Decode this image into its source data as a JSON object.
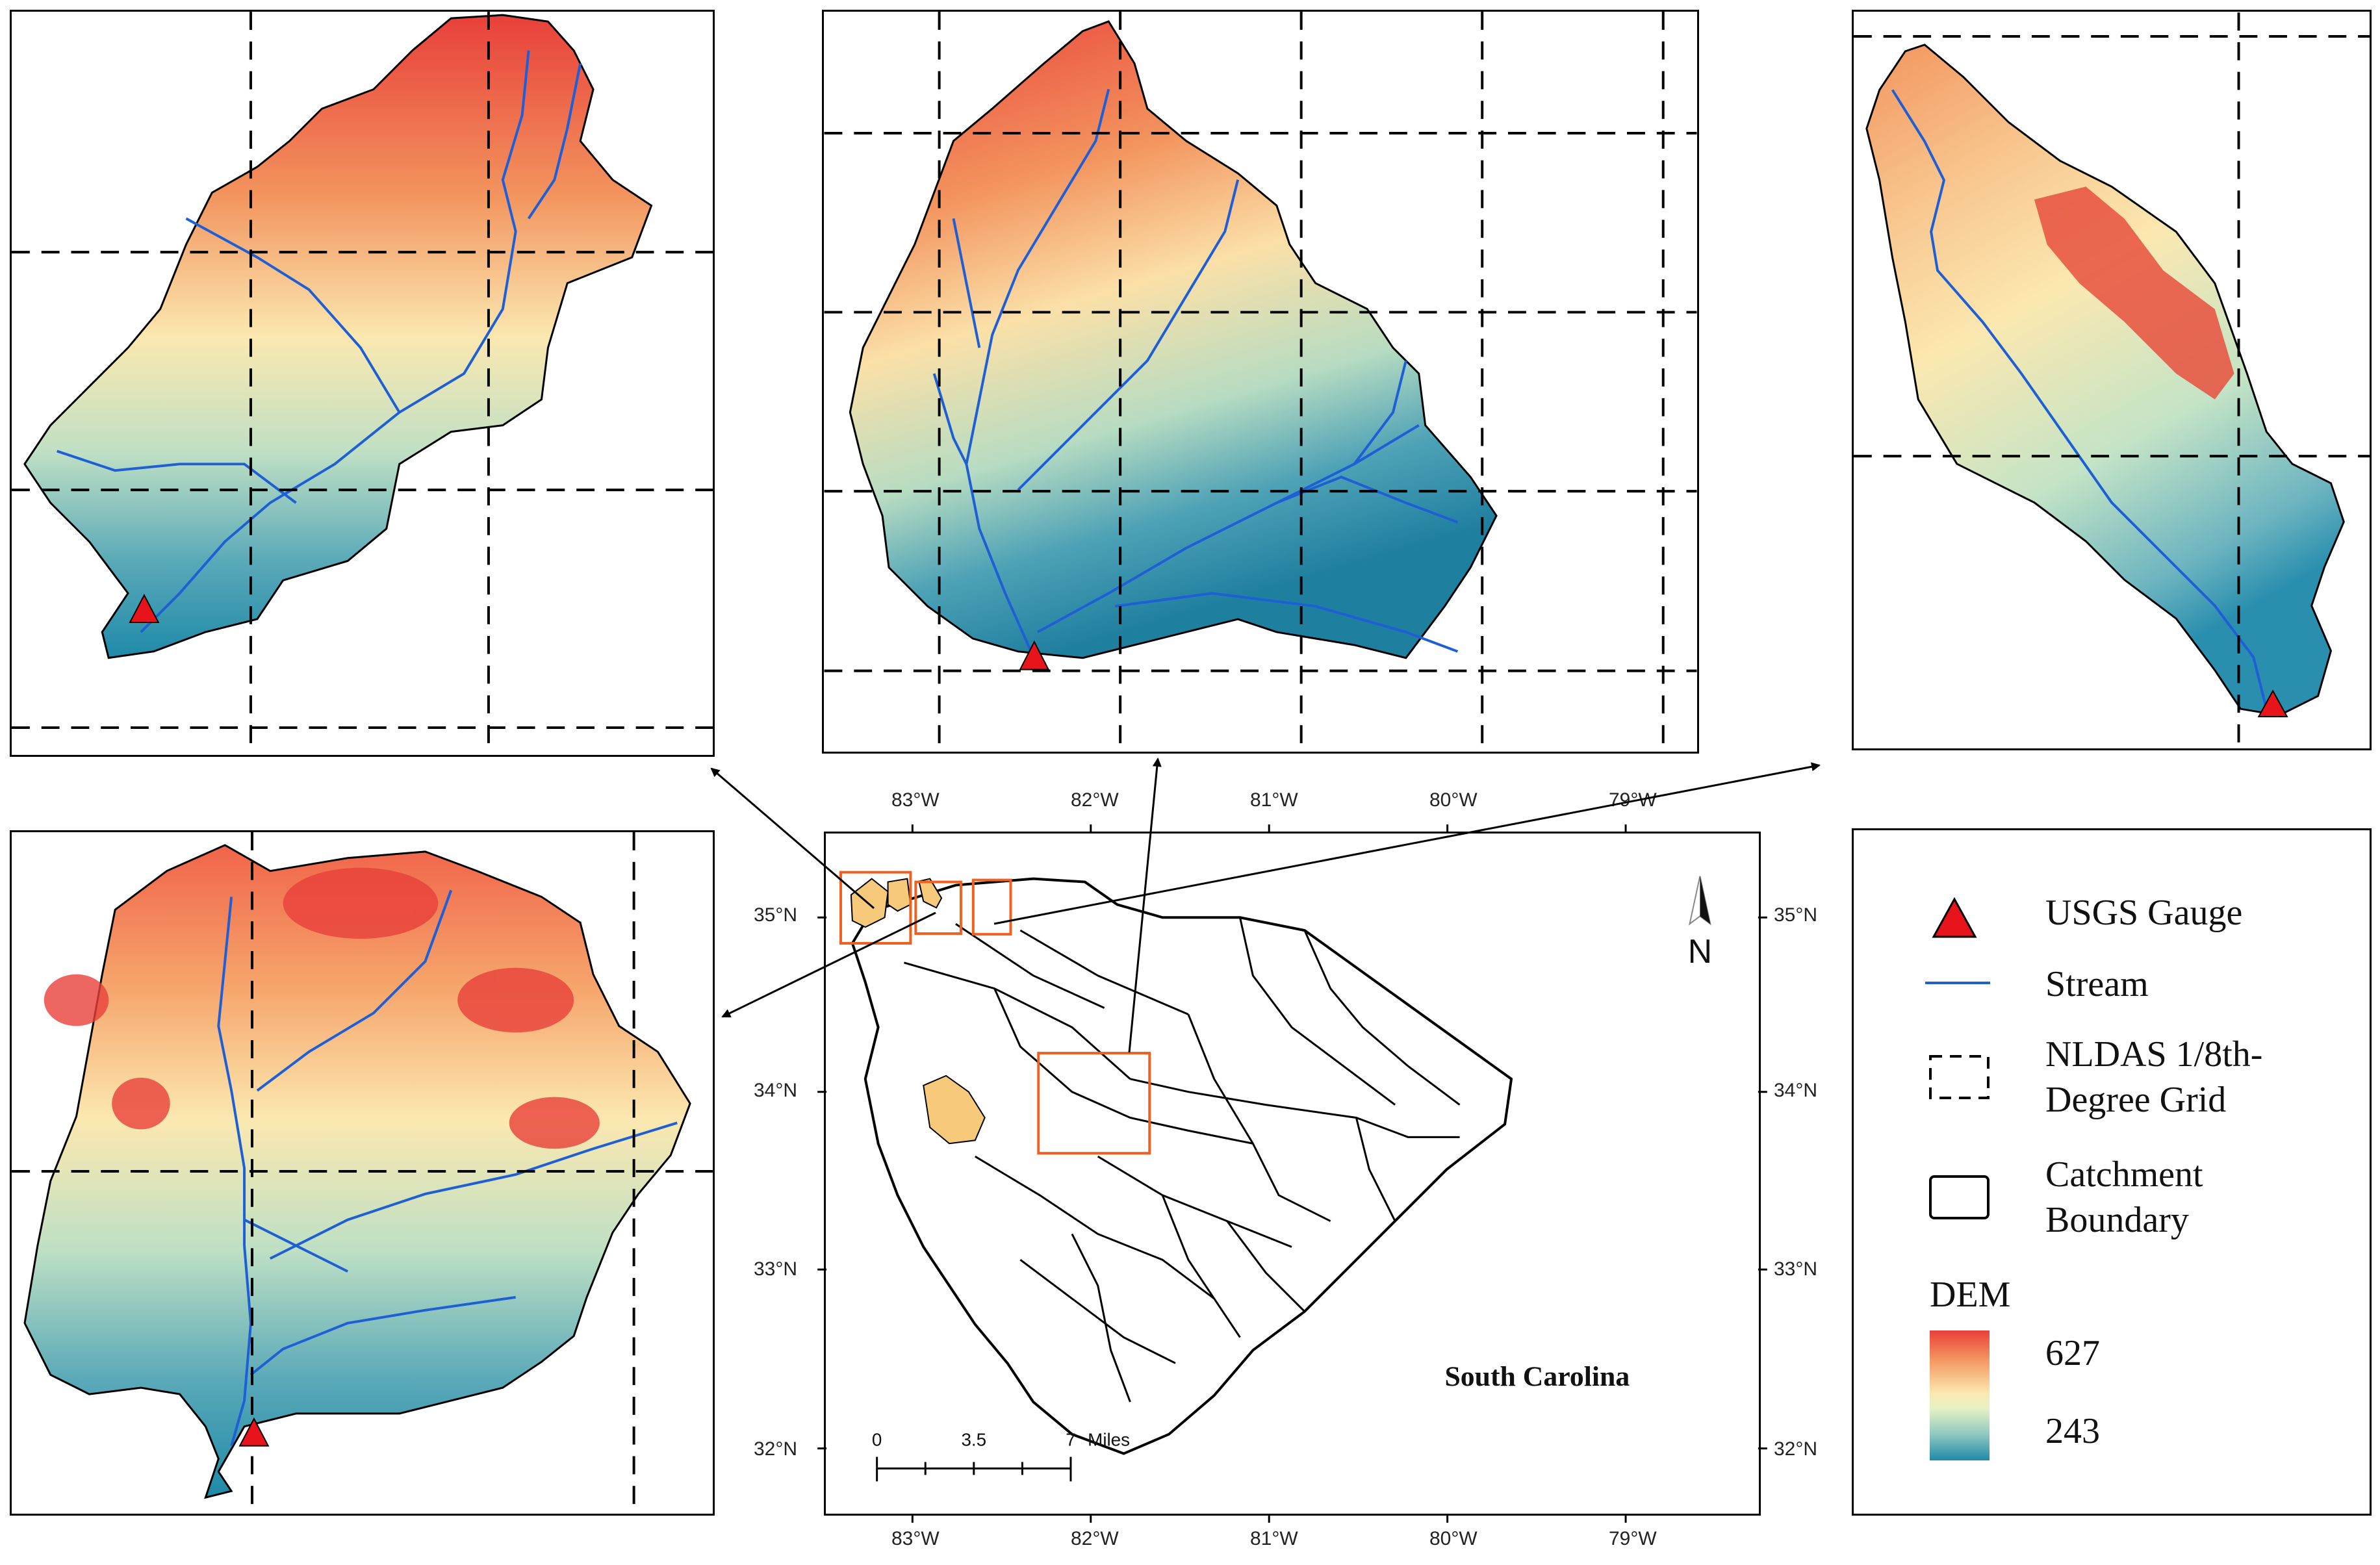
{
  "map": {
    "top_axis_labels": [
      "83°W",
      "82°W",
      "81°W",
      "80°W",
      "79°W"
    ],
    "bottom_axis_labels": [
      "83°W",
      "82°W",
      "81°W",
      "80°W",
      "79°W"
    ],
    "left_axis_labels": [
      "35°N",
      "34°N",
      "33°N",
      "32°N"
    ],
    "right_axis_labels": [
      "35°N",
      "34°N",
      "33°N",
      "32°N"
    ],
    "state_label": "South Carolina",
    "north_arrow_label": "N",
    "scale_bar": {
      "ticks": [
        "0",
        "3.5",
        "7"
      ],
      "unit": "Miles"
    }
  },
  "legend": {
    "gauge_label": "USGS Gauge",
    "stream_label": "Stream",
    "grid_label_line1": "NLDAS 1/8th-",
    "grid_label_line2": "Degree Grid",
    "boundary_label_line1": "Catchment",
    "boundary_label_line2": "Boundary",
    "dem_title": "DEM",
    "dem_max": "627",
    "dem_min": "243"
  },
  "colors": {
    "gauge": "#e8141c",
    "stream": "#1f5fd6",
    "dem_high": "#e8403a",
    "dem_mid": "#fbe8b0",
    "dem_low": "#1f8aa8",
    "highlight_box": "#f06020",
    "catchment_fill": "#f7c97a"
  }
}
